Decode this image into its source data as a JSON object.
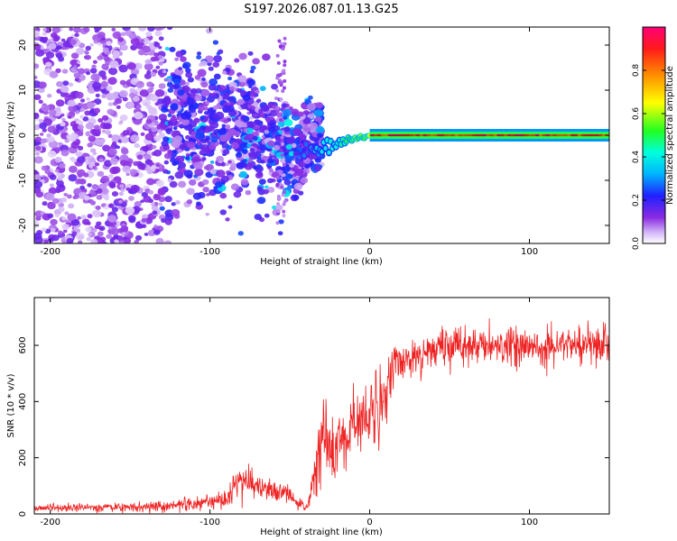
{
  "title": "S197.2026.087.01.13.G25",
  "chart_data": [
    {
      "type": "heatmap",
      "title": "",
      "xlabel": "Height of straight line (km)",
      "ylabel": "Frequency (Hz)",
      "xlim": [
        -210,
        150
      ],
      "ylim": [
        -24,
        24
      ],
      "xticks": [
        -200,
        -100,
        0,
        100
      ],
      "yticks": [
        -20,
        -10,
        0,
        10,
        20
      ],
      "colorbar": {
        "label": "Normalized spectral amplitude",
        "range": [
          0.0,
          1.0
        ],
        "ticks": [
          0.0,
          0.2,
          0.4,
          0.6,
          0.8
        ],
        "colormap": "rainbow"
      },
      "regions": [
        {
          "x_range": [
            -210,
            -130
          ],
          "description": "scattered weak spectral noise",
          "amplitude_range": [
            0.0,
            0.15
          ]
        },
        {
          "x_range": [
            -130,
            -40
          ],
          "description": "noisy spread converging toward 0 Hz",
          "amplitude_range": [
            0.1,
            0.3
          ]
        },
        {
          "x_range": [
            -40,
            0
          ],
          "description": "narrowing line near 0 Hz",
          "amplitude_range": [
            0.2,
            0.6
          ]
        },
        {
          "x_range": [
            0,
            150
          ],
          "description": "coherent line at 0 Hz",
          "amplitude_range": [
            0.6,
            1.0
          ]
        }
      ]
    },
    {
      "type": "line",
      "title": "",
      "xlabel": "Height of straight line (km)",
      "ylabel": "SNR (10 * v/v)",
      "xlim": [
        -210,
        150
      ],
      "ylim": [
        0,
        770
      ],
      "xticks": [
        -200,
        -100,
        0,
        100
      ],
      "yticks": [
        0,
        200,
        400,
        600
      ],
      "series": [
        {
          "name": "SNR",
          "color": "#ee2222",
          "x": [
            -210,
            -190,
            -170,
            -150,
            -130,
            -120,
            -110,
            -100,
            -90,
            -85,
            -80,
            -75,
            -70,
            -65,
            -60,
            -55,
            -50,
            -45,
            -40,
            -37,
            -35,
            -32,
            -30,
            -28,
            -25,
            -22,
            -20,
            -18,
            -15,
            -12,
            -10,
            -8,
            -5,
            -3,
            0,
            3,
            5,
            8,
            10,
            13,
            15,
            18,
            20,
            25,
            30,
            35,
            40,
            50,
            60,
            70,
            80,
            90,
            100,
            110,
            120,
            130,
            140,
            150
          ],
          "mean": [
            22,
            22,
            23,
            24,
            28,
            32,
            38,
            45,
            55,
            100,
            120,
            110,
            95,
            85,
            80,
            75,
            65,
            40,
            25,
            60,
            130,
            200,
            260,
            290,
            260,
            210,
            230,
            280,
            240,
            290,
            320,
            300,
            360,
            340,
            320,
            380,
            350,
            410,
            440,
            460,
            500,
            530,
            540,
            560,
            570,
            580,
            590,
            595,
            598,
            600,
            600,
            598,
            602,
            600,
            598,
            600,
            600,
            600
          ],
          "noise": [
            12,
            12,
            12,
            13,
            15,
            18,
            20,
            22,
            25,
            45,
            50,
            45,
            40,
            35,
            35,
            30,
            30,
            20,
            15,
            40,
            80,
            100,
            110,
            110,
            100,
            90,
            90,
            100,
            90,
            110,
            110,
            100,
            120,
            110,
            110,
            120,
            110,
            110,
            100,
            90,
            80,
            70,
            60,
            60,
            55,
            55,
            55,
            55,
            55,
            55,
            55,
            55,
            55,
            55,
            60,
            60,
            60,
            60
          ]
        }
      ]
    }
  ]
}
